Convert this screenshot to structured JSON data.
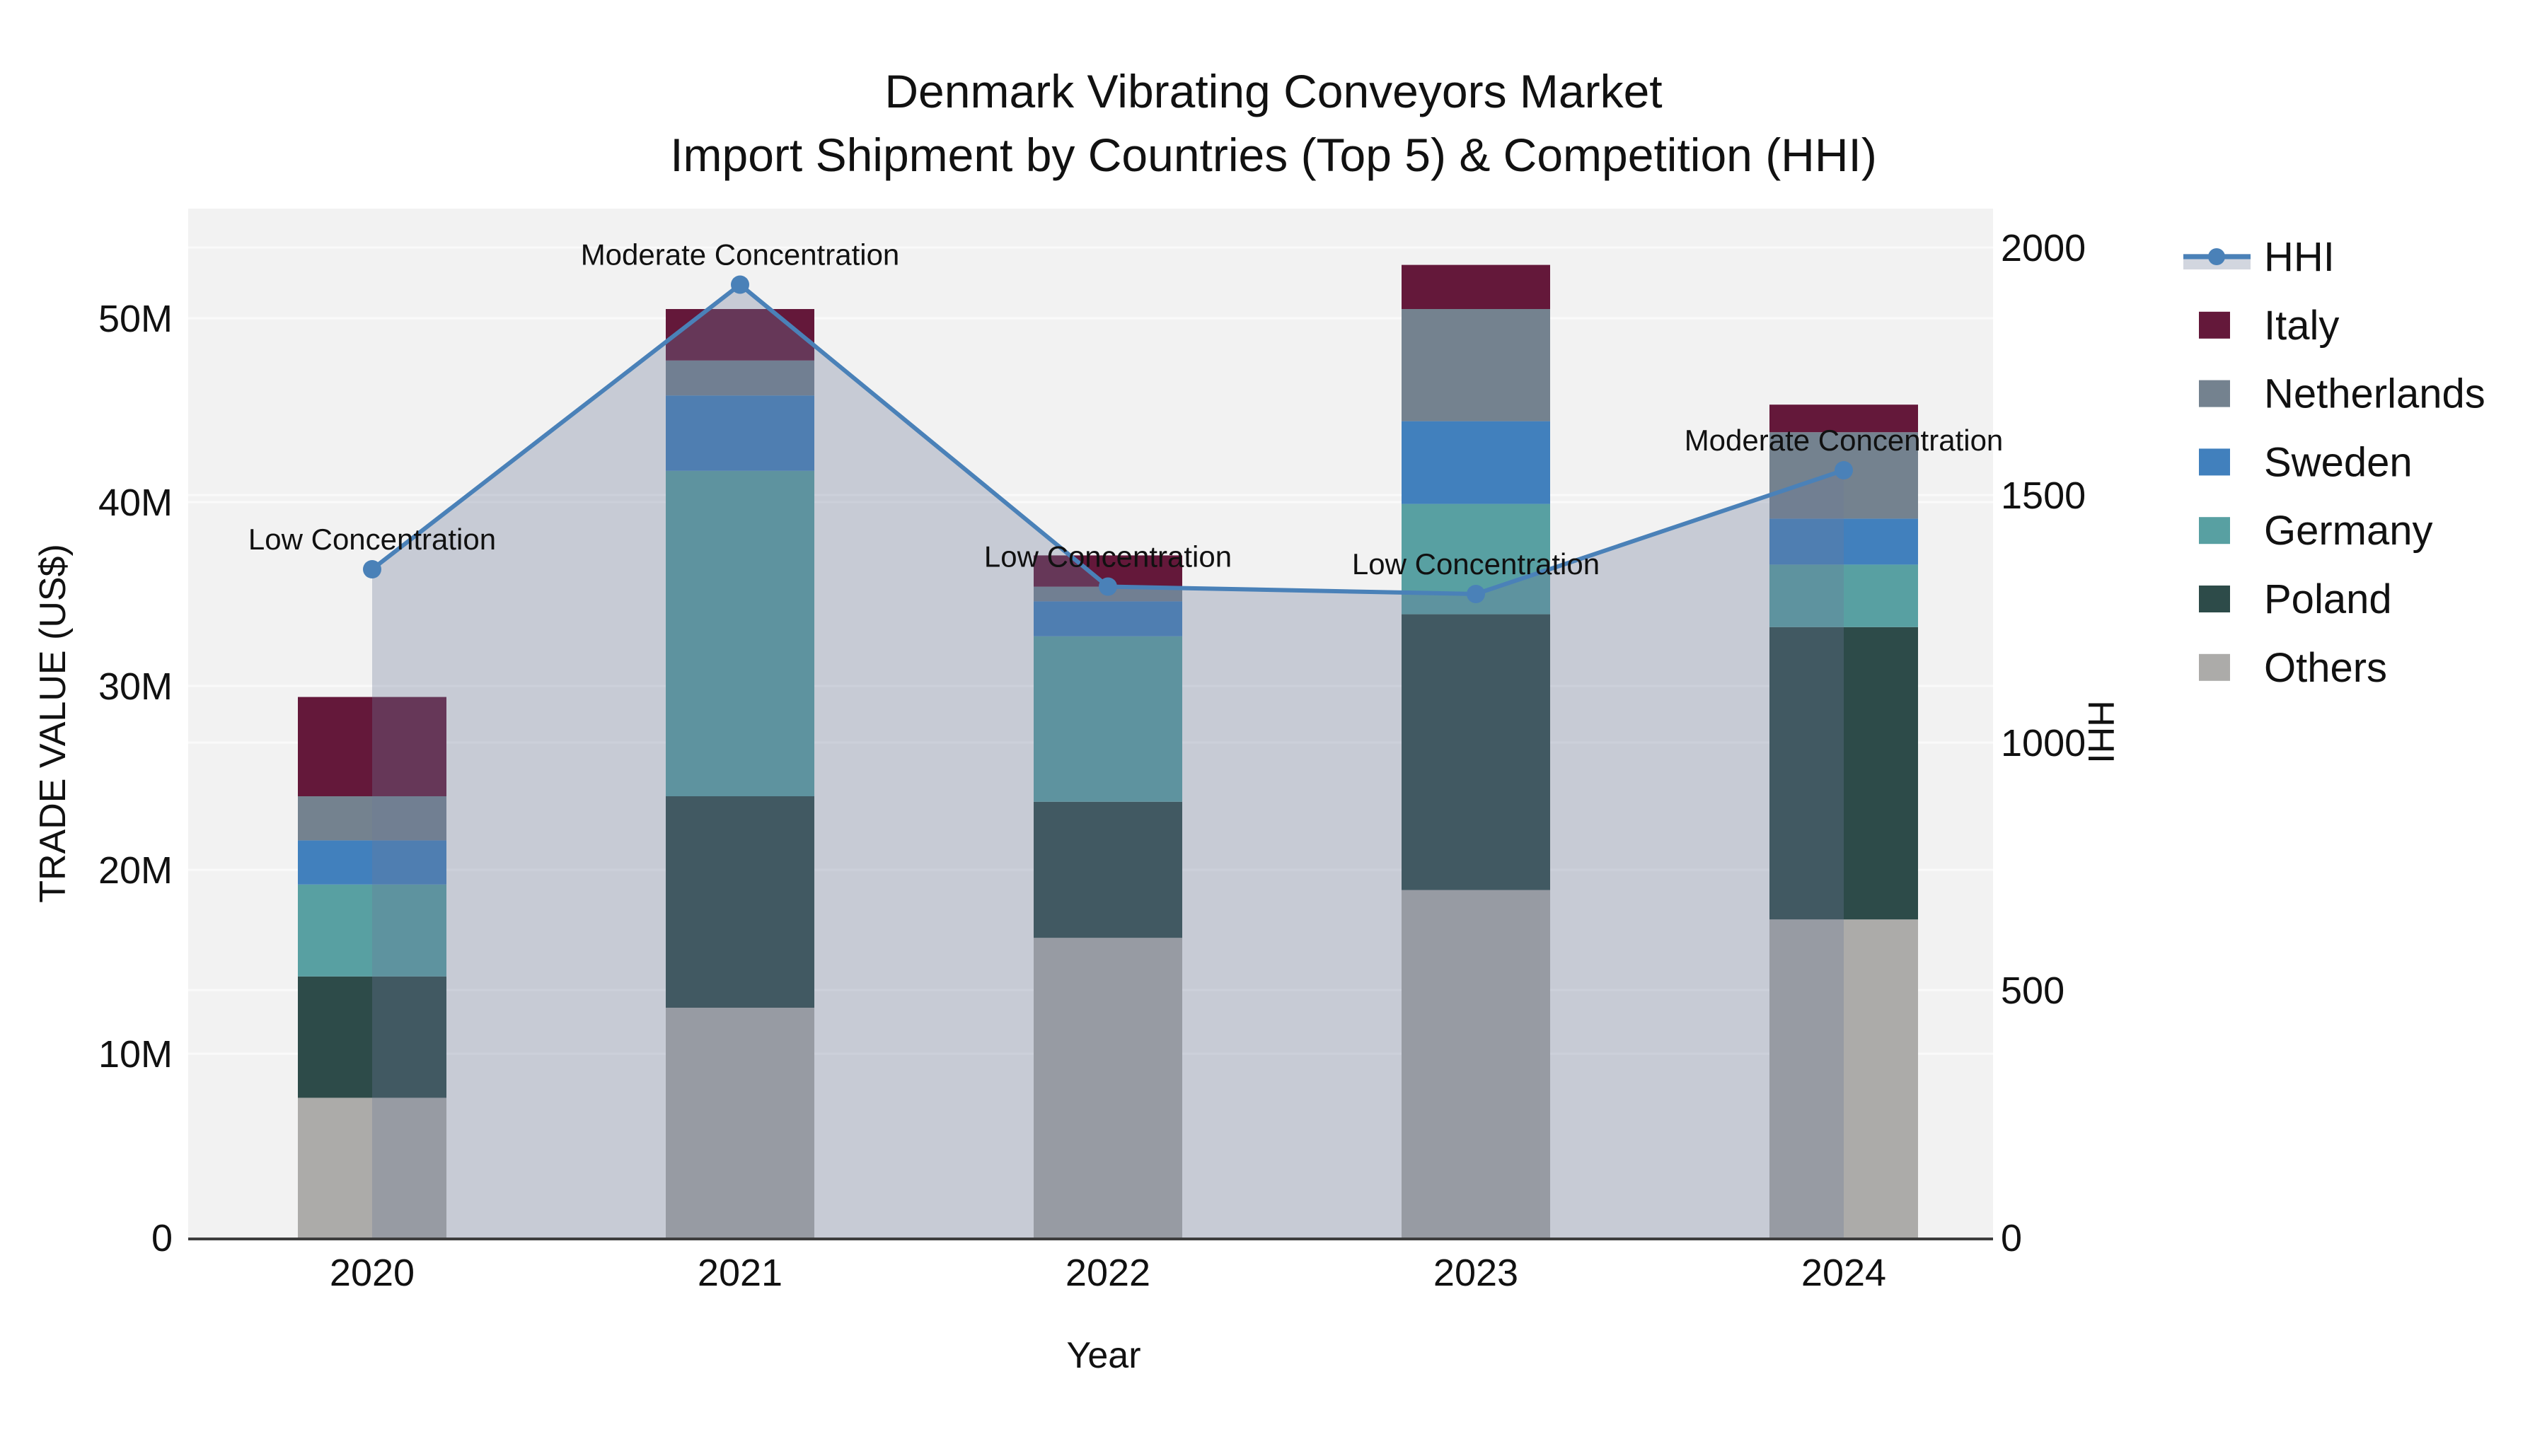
{
  "title": {
    "line1": "Denmark Vibrating Conveyors Market",
    "line2": "Import Shipment by Countries (Top 5) & Competition (HHI)"
  },
  "axes": {
    "x_title": "Year",
    "left_title": "TRADE VALUE (US$)",
    "right_title": "HHI",
    "left_ticks": [
      {
        "label": "0",
        "value": 0
      },
      {
        "label": "10M",
        "value": 10
      },
      {
        "label": "20M",
        "value": 20
      },
      {
        "label": "30M",
        "value": 30
      },
      {
        "label": "40M",
        "value": 40
      },
      {
        "label": "50M",
        "value": 50
      }
    ],
    "right_ticks": [
      {
        "label": "0",
        "value": 0
      },
      {
        "label": "500",
        "value": 500
      },
      {
        "label": "1000",
        "value": 1000
      },
      {
        "label": "1500",
        "value": 1500
      },
      {
        "label": "2000",
        "value": 2000
      }
    ]
  },
  "chart_data": {
    "type": "bar+line",
    "bar_value_unit": "US$ millions (left axis)",
    "line_value_unit": "HHI index (right axis)",
    "categories": [
      "2020",
      "2021",
      "2022",
      "2023",
      "2024"
    ],
    "left_axis_range_millions": [
      0,
      56
    ],
    "right_axis_range": [
      0,
      2000
    ],
    "grid": "on",
    "bar_series_bottom_to_top": [
      {
        "name": "Others",
        "color": "#acaba9",
        "values": [
          7.6,
          12.5,
          16.3,
          18.9,
          17.3
        ]
      },
      {
        "name": "Poland",
        "color": "#2d4b49",
        "values": [
          6.6,
          11.5,
          7.4,
          15.0,
          15.9
        ]
      },
      {
        "name": "Germany",
        "color": "#58a0a2",
        "values": [
          5.0,
          17.7,
          9.0,
          6.0,
          3.4
        ]
      },
      {
        "name": "Sweden",
        "color": "#4180bd",
        "values": [
          2.4,
          4.1,
          1.9,
          4.5,
          2.5
        ]
      },
      {
        "name": "Netherlands",
        "color": "#74828f",
        "values": [
          2.4,
          1.9,
          0.8,
          6.1,
          4.7
        ]
      },
      {
        "name": "Italy",
        "color": "#64183a",
        "values": [
          5.4,
          2.8,
          1.7,
          2.4,
          1.5
        ]
      }
    ],
    "bar_totals_millions": [
      29.4,
      50.5,
      37.1,
      52.9,
      45.3
    ],
    "hhi_series": {
      "name": "HHI",
      "axis": "right",
      "color": "#4a81b8",
      "area_fill": "rgba(110,122,152,0.32)",
      "values": [
        1350,
        1925,
        1315,
        1300,
        1550
      ]
    },
    "annotations": [
      {
        "category": "2020",
        "text": "Low Concentration"
      },
      {
        "category": "2021",
        "text": "Moderate Concentration"
      },
      {
        "category": "2022",
        "text": "Low Concentration"
      },
      {
        "category": "2023",
        "text": "Low Concentration"
      },
      {
        "category": "2024",
        "text": "Moderate Concentration"
      }
    ]
  },
  "legend": {
    "items": [
      {
        "label": "HHI",
        "type": "line",
        "color": "#4a81b8",
        "band_color": "#d2d6df"
      },
      {
        "label": "Italy",
        "type": "swatch",
        "color": "#64183a"
      },
      {
        "label": "Netherlands",
        "type": "swatch",
        "color": "#74828f"
      },
      {
        "label": "Sweden",
        "type": "swatch",
        "color": "#4180bd"
      },
      {
        "label": "Germany",
        "type": "swatch",
        "color": "#58a0a2"
      },
      {
        "label": "Poland",
        "type": "swatch",
        "color": "#2d4b49"
      },
      {
        "label": "Others",
        "type": "swatch",
        "color": "#acaba9"
      }
    ]
  },
  "colors": {
    "plot_background": "#f2f2f2",
    "page_background": "#ffffff",
    "gridline": "#fafafa",
    "axis_line": "#3d3d3d",
    "text": "#111111"
  }
}
